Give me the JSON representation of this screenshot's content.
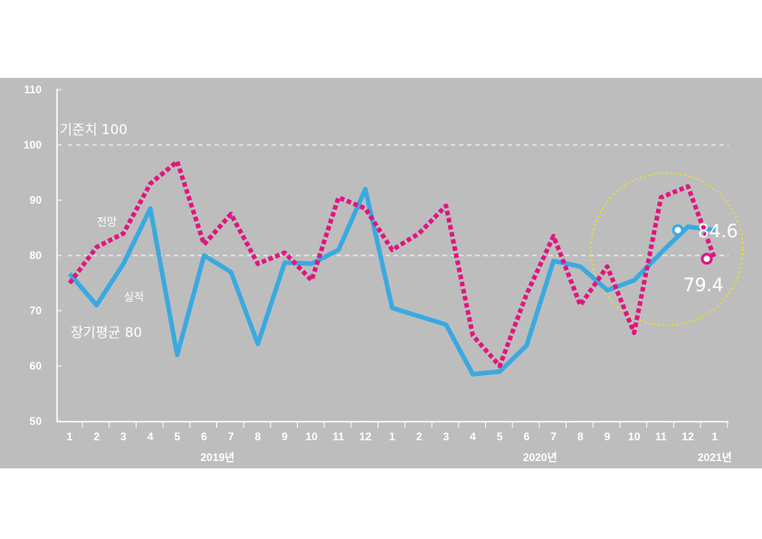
{
  "chart_data": {
    "type": "line",
    "ylim": [
      50,
      110
    ],
    "yticks": [
      50,
      60,
      70,
      80,
      90,
      100,
      110
    ],
    "categories": [
      "1",
      "2",
      "3",
      "4",
      "5",
      "6",
      "7",
      "8",
      "9",
      "10",
      "11",
      "12",
      "1",
      "2",
      "3",
      "4",
      "5",
      "6",
      "7",
      "8",
      "9",
      "10",
      "11",
      "12",
      "1"
    ],
    "year_labels": [
      {
        "text": "2019년",
        "index": 5.5
      },
      {
        "text": "2020년",
        "index": 17.5
      },
      {
        "text": "2021년",
        "index": 24
      }
    ],
    "reference_lines": [
      {
        "label": "기준치 100",
        "value": 100
      },
      {
        "label": "장기평균 80",
        "value": 80
      }
    ],
    "series": [
      {
        "name": "실적",
        "color": "#3aa9e0",
        "style": "solid",
        "values": [
          76.7,
          71,
          78.5,
          88.5,
          62,
          80,
          77,
          64,
          78.7,
          78.5,
          81,
          92,
          70.5,
          69,
          67.5,
          58.5,
          59,
          63.7,
          79,
          78,
          73.7,
          75.5,
          80.5,
          85.2,
          84.6
        ]
      },
      {
        "name": "전망",
        "color": "#e0157f",
        "style": "dotted",
        "values": [
          75,
          81.5,
          84,
          93,
          97,
          82,
          87.5,
          78.5,
          80.5,
          75.5,
          90.5,
          88.5,
          81,
          84,
          89,
          65.5,
          60,
          73,
          83.5,
          71,
          78,
          66,
          90.5,
          92.5,
          79.4
        ]
      }
    ],
    "end_labels": [
      {
        "text": "84.6",
        "series": 0
      },
      {
        "text": "79.4",
        "series": 1
      }
    ],
    "highlight": {
      "color": "#f2e600",
      "style": "dotted-circle"
    }
  }
}
